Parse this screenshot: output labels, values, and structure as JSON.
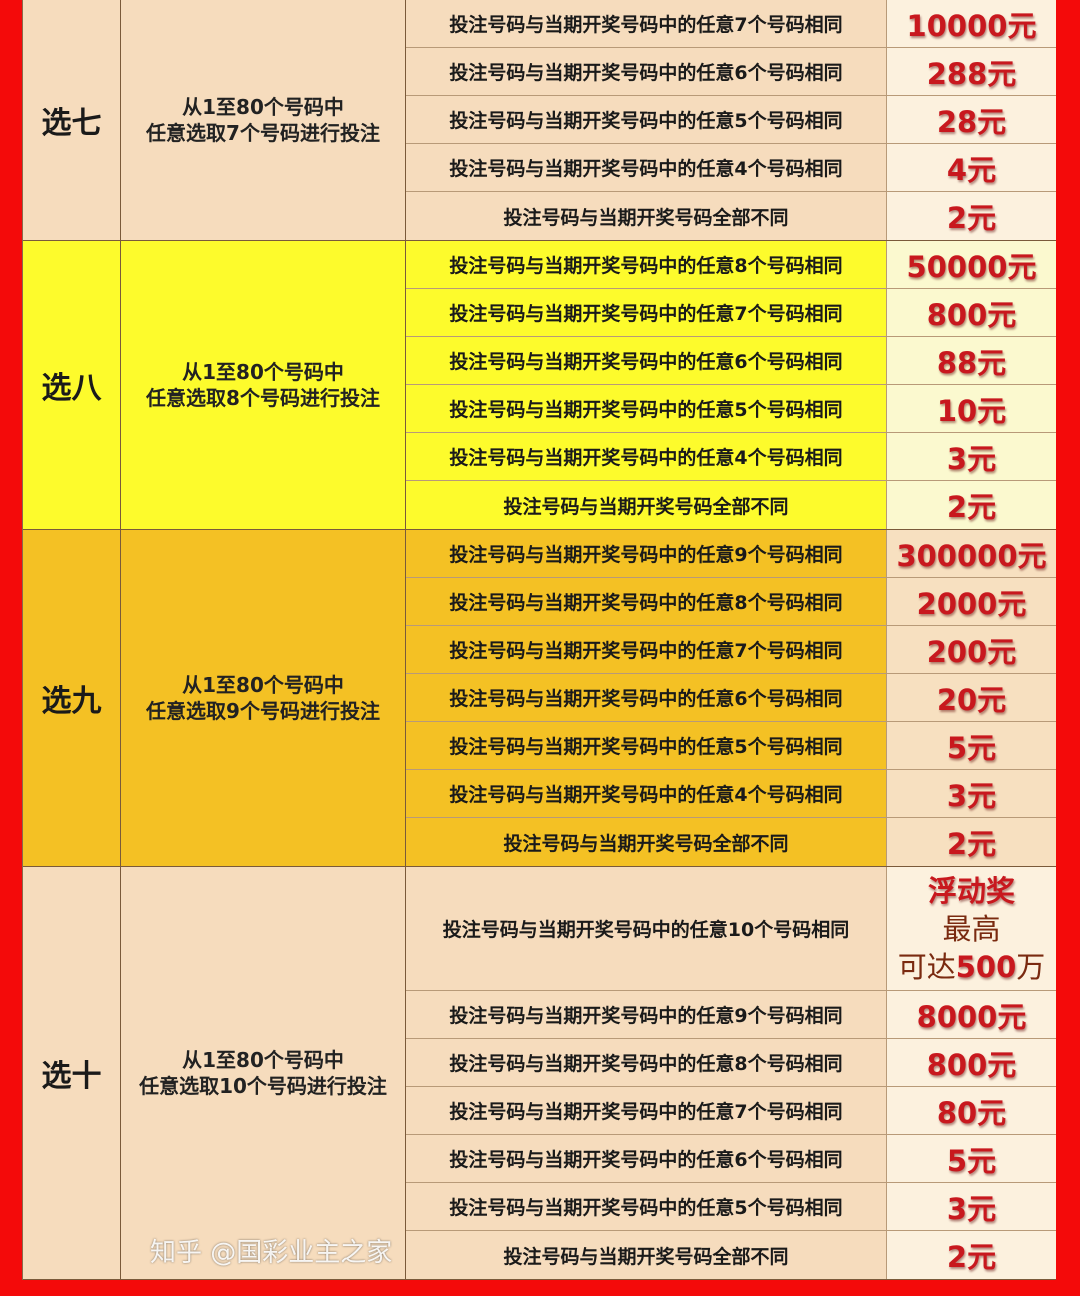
{
  "colors": {
    "frame": "#f40a0a",
    "prize_text": "#c8181e"
  },
  "sections": [
    {
      "name": "选七",
      "desc_line1": "从1至80个号码中",
      "desc_line2": "任意选取7个号码进行投注",
      "bg": "#f6dcbd",
      "prize_bg": "#fcf1de",
      "rows": [
        {
          "condition": "投注号码与当期开奖号码中的任意7个号码相同",
          "prize": "10000元"
        },
        {
          "condition": "投注号码与当期开奖号码中的任意6个号码相同",
          "prize": "288元"
        },
        {
          "condition": "投注号码与当期开奖号码中的任意5个号码相同",
          "prize": "28元"
        },
        {
          "condition": "投注号码与当期开奖号码中的任意4个号码相同",
          "prize": "4元"
        },
        {
          "condition": "投注号码与当期开奖号码全部不同",
          "prize": "2元"
        }
      ]
    },
    {
      "name": "选八",
      "desc_line1": "从1至80个号码中",
      "desc_line2": "任意选取8个号码进行投注",
      "bg": "#fdfb2c",
      "prize_bg": "#fbf9cf",
      "rows": [
        {
          "condition": "投注号码与当期开奖号码中的任意8个号码相同",
          "prize": "50000元"
        },
        {
          "condition": "投注号码与当期开奖号码中的任意7个号码相同",
          "prize": "800元"
        },
        {
          "condition": "投注号码与当期开奖号码中的任意6个号码相同",
          "prize": "88元"
        },
        {
          "condition": "投注号码与当期开奖号码中的任意5个号码相同",
          "prize": "10元"
        },
        {
          "condition": "投注号码与当期开奖号码中的任意4个号码相同",
          "prize": "3元"
        },
        {
          "condition": "投注号码与当期开奖号码全部不同",
          "prize": "2元"
        }
      ]
    },
    {
      "name": "选九",
      "desc_line1": "从1至80个号码中",
      "desc_line2": "任意选取9个号码进行投注",
      "bg": "#f4c124",
      "prize_bg": "#f7e0c0",
      "rows": [
        {
          "condition": "投注号码与当期开奖号码中的任意9个号码相同",
          "prize": "300000元"
        },
        {
          "condition": "投注号码与当期开奖号码中的任意8个号码相同",
          "prize": "2000元"
        },
        {
          "condition": "投注号码与当期开奖号码中的任意7个号码相同",
          "prize": "200元"
        },
        {
          "condition": "投注号码与当期开奖号码中的任意6个号码相同",
          "prize": "20元"
        },
        {
          "condition": "投注号码与当期开奖号码中的任意5个号码相同",
          "prize": "5元"
        },
        {
          "condition": "投注号码与当期开奖号码中的任意4个号码相同",
          "prize": "3元"
        },
        {
          "condition": "投注号码与当期开奖号码全部不同",
          "prize": "2元"
        }
      ]
    },
    {
      "name": "选十",
      "desc_line1": "从1至80个号码中",
      "desc_line2": "任意选取10个号码进行投注",
      "bg": "#f6dcbd",
      "prize_bg": "#fcf1de",
      "rows": [
        {
          "condition": "投注号码与当期开奖号码中的任意10个号码相同",
          "prize_lines": [
            "浮动奖",
            "最高",
            "可达",
            "500",
            "万"
          ]
        },
        {
          "condition": "投注号码与当期开奖号码中的任意9个号码相同",
          "prize": "8000元"
        },
        {
          "condition": "投注号码与当期开奖号码中的任意8个号码相同",
          "prize": "800元"
        },
        {
          "condition": "投注号码与当期开奖号码中的任意7个号码相同",
          "prize": "80元"
        },
        {
          "condition": "投注号码与当期开奖号码中的任意6个号码相同",
          "prize": "5元"
        },
        {
          "condition": "投注号码与当期开奖号码中的任意5个号码相同",
          "prize": "3元"
        },
        {
          "condition": "投注号码与当期开奖号码全部不同",
          "prize": "2元"
        }
      ]
    }
  ],
  "watermark": "知乎 @国彩业主之家"
}
